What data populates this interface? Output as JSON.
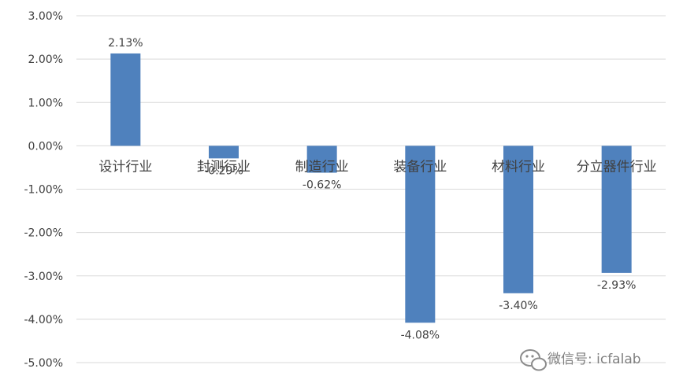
{
  "chart_data": {
    "type": "bar",
    "categories": [
      "设计行业",
      "封测行业",
      "制造行业",
      "装备行业",
      "材料行业",
      "分立器件行业"
    ],
    "values": [
      2.13,
      -0.29,
      -0.62,
      -4.08,
      -3.4,
      -2.93
    ],
    "data_labels": [
      "2.13%",
      "-0.29%",
      "-0.62%",
      "-4.08%",
      "-3.40%",
      "-2.93%"
    ],
    "y_ticks": [
      "3.00%",
      "2.00%",
      "1.00%",
      "0.00%",
      "-1.00%",
      "-2.00%",
      "-3.00%",
      "-4.00%",
      "-5.00%"
    ],
    "ylim": [
      -5,
      3
    ],
    "grid": true,
    "bar_color": "#4f81bd"
  },
  "watermark": {
    "text": "微信号: icfalab",
    "icon": "wechat-icon"
  }
}
